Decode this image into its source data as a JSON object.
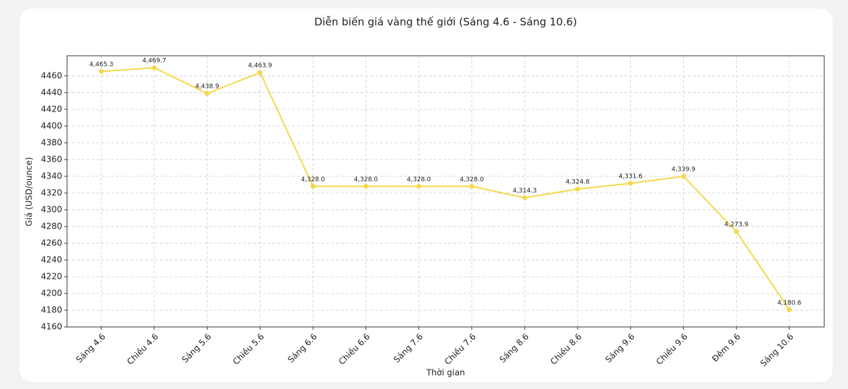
{
  "chart_data": {
    "type": "line",
    "title": "Diễn biến giá vàng thế giới (Sáng 4.6 - Sáng 10.6)",
    "x_label": "Thời gian",
    "y_label": "Giá (USD/ounce)",
    "categories": [
      "Sáng 4.6",
      "Chiều 4.6",
      "Sáng 5.6",
      "Chiều 5.6",
      "Sáng 6.6",
      "Chiều 6.6",
      "Sáng 7.6",
      "Chiều 7.6",
      "Sáng 8.6",
      "Chiều 8.6",
      "Sáng 9.6",
      "Chiều 9.6",
      "Đêm 9.6",
      "Sáng 10.6"
    ],
    "series": [
      {
        "name": "Giá",
        "color": "#f5d84a",
        "values": [
          4465.3,
          4469.7,
          4438.9,
          4463.9,
          4328.0,
          4328.0,
          4328.0,
          4328.0,
          4314.3,
          4324.8,
          4331.6,
          4339.9,
          4273.9,
          4180.6
        ],
        "value_labels": [
          "4,465.3",
          "4,469.7",
          "4,438.9",
          "4,463.9",
          "4,328.0",
          "4,328.0",
          "4,328.0",
          "4,328.0",
          "4,314.3",
          "4,324.8",
          "4,331.6",
          "4,339.9",
          "4,273.9",
          "4,180.6"
        ]
      }
    ],
    "ylim": [
      4160,
      4484
    ],
    "yticks": [
      4160,
      4180,
      4200,
      4220,
      4240,
      4260,
      4280,
      4300,
      4320,
      4340,
      4360,
      4380,
      4400,
      4420,
      4440,
      4460
    ],
    "grid": true
  }
}
